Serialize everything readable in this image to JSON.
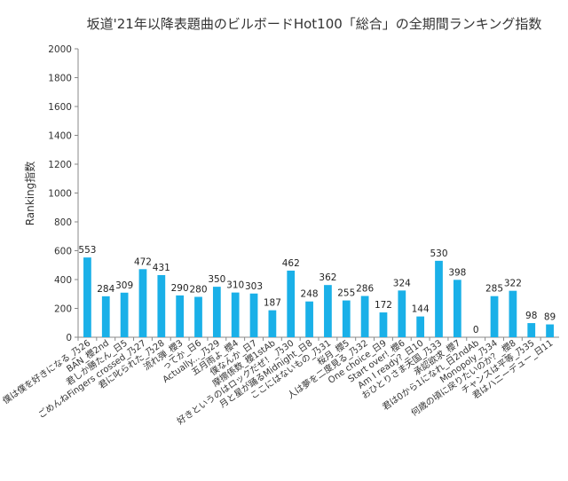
{
  "chart_data": {
    "type": "bar",
    "title": "坂道'21年以降表題曲のビルボードHot100「総合」の全期間ランキング指数",
    "xlabel": "",
    "ylabel": "Ranking指数",
    "ylim": [
      0,
      2000
    ],
    "yticks": [
      0,
      200,
      400,
      600,
      800,
      1000,
      1200,
      1400,
      1600,
      1800,
      2000
    ],
    "grid": false,
    "legend": "none",
    "bar_color": "#1ab0e8",
    "categories": [
      "僕は僕を好きになる_乃26",
      "BAN_櫻2nd",
      "君しか勝たん_日5",
      "ごめんねFingers crossed_乃27",
      "君に叱られた_乃28",
      "流れ弾_櫻3",
      "ってか_日6",
      "Actually..._乃29",
      "五月雨よ_櫻4",
      "僕なんか_日7",
      "摩擦係数_櫻1stAb",
      "好きというのはロックだぜ！_乃30",
      "月と星が踊るMidnight_日8",
      "ここにはないもの_乃31",
      "桜月_櫻5",
      "人は夢を二度見る_乃32",
      "One choice_日9",
      "Start over!_櫻6",
      "Am I ready?_日10",
      "おひとりさま天国_乃33",
      "承認欲求_櫻7",
      "君は0から1になれ_日2ndAb",
      "Monopoly_乃34",
      "何歳の頃に戻りたいのか？_櫻8",
      "チャンスは平等_乃35",
      "君はハニーデュー_日11"
    ],
    "values": [
      553,
      284,
      309,
      472,
      431,
      290,
      280,
      350,
      310,
      303,
      187,
      462,
      248,
      362,
      255,
      286,
      172,
      324,
      144,
      530,
      398,
      0,
      285,
      322,
      98,
      89
    ]
  }
}
